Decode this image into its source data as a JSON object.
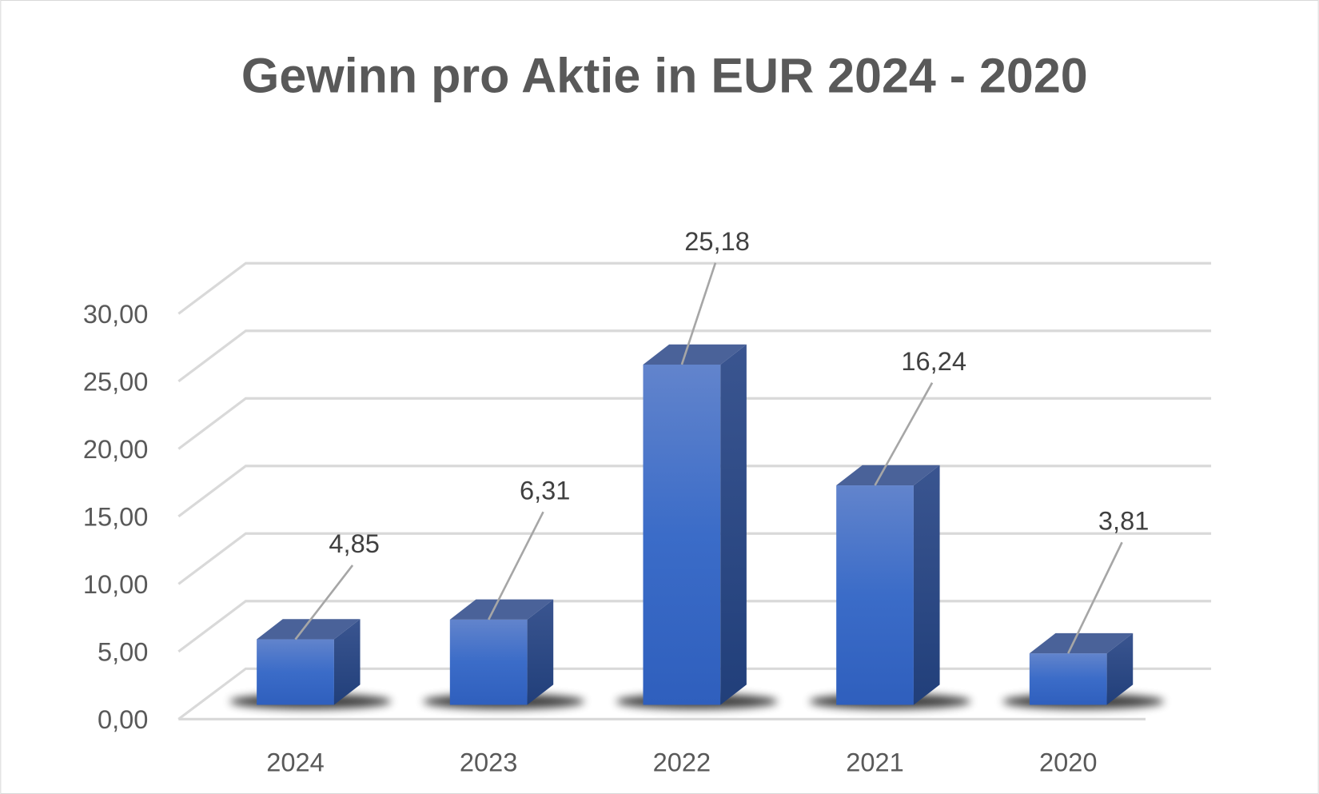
{
  "chart_data": {
    "type": "bar",
    "style": "3d-column",
    "title": "Gewinn pro Aktie in EUR 2024 - 2020",
    "categories": [
      "2024",
      "2023",
      "2022",
      "2021",
      "2020"
    ],
    "values": [
      4.85,
      6.31,
      25.18,
      16.24,
      3.81
    ],
    "data_labels": [
      "4,85",
      "6,31",
      "25,18",
      "16,24",
      "3,81"
    ],
    "yticks": [
      "0,00",
      "5,00",
      "10,00",
      "15,00",
      "20,00",
      "25,00",
      "30,00"
    ],
    "ylim": [
      0,
      30
    ],
    "xlabel": "",
    "ylabel": "",
    "grid": true,
    "legend": "none",
    "colors": {
      "bar_front": "#4472c4",
      "bar_top": "#4a6299",
      "bar_side": "#2c4a85",
      "grid": "#d9d9d9",
      "text": "#595959",
      "label": "#404040"
    }
  }
}
